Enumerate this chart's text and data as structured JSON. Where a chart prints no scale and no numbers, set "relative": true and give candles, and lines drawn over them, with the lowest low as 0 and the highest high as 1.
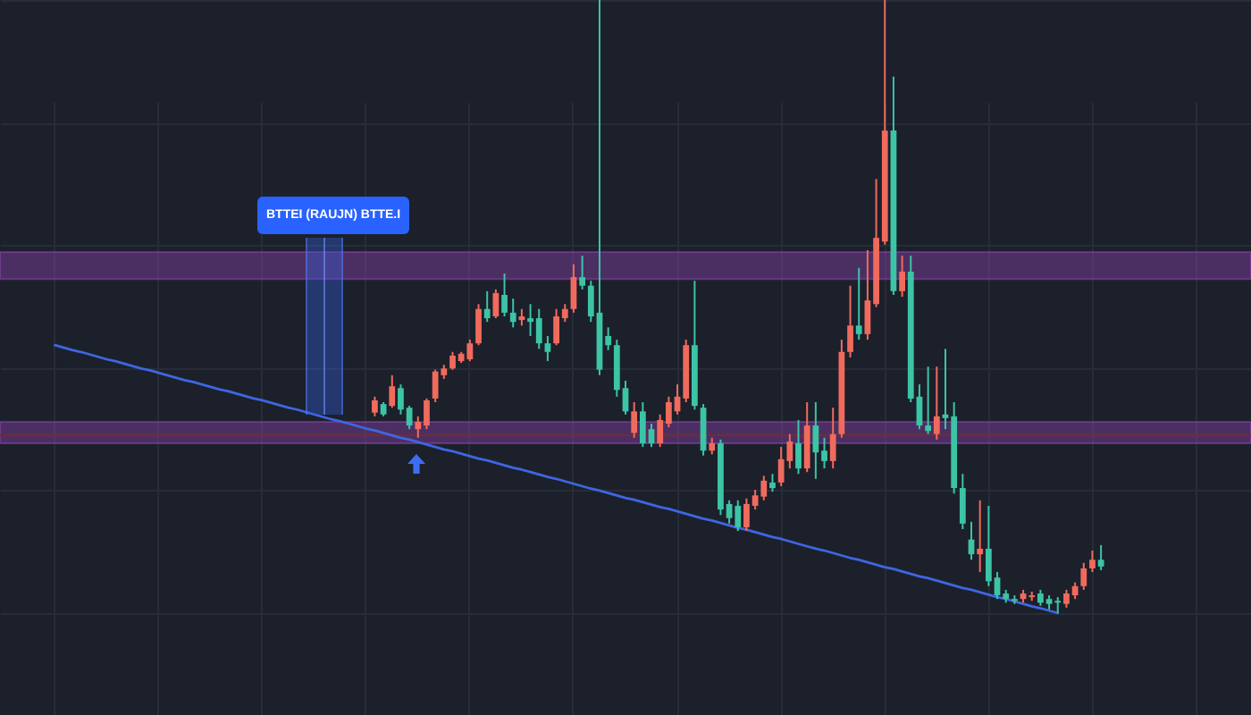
{
  "chart_data": {
    "type": "candlestick",
    "relative": true,
    "grid": true,
    "annotations": [
      "BTTEI (RAUJN) BTTE.I"
    ],
    "categories": [
      null,
      null,
      null,
      null,
      null,
      null,
      null,
      null,
      null,
      null,
      null,
      null,
      null,
      null,
      null,
      null,
      null,
      null,
      null,
      null,
      null,
      null,
      null,
      null,
      null,
      null,
      null,
      null,
      null,
      null,
      null,
      null,
      null,
      null,
      null,
      null,
      null,
      null,
      null,
      null,
      null,
      null,
      null,
      null,
      null,
      null,
      null,
      null,
      null,
      null,
      null,
      null,
      null,
      null,
      null,
      null,
      null,
      null,
      null,
      null,
      null,
      null,
      null,
      null,
      null,
      null,
      null,
      null,
      null,
      null,
      null,
      null,
      null,
      null,
      null,
      null,
      null,
      null,
      null,
      null,
      null,
      null,
      null,
      null,
      null,
      null,
      null,
      null,
      null,
      null,
      null,
      null,
      null,
      null,
      null,
      null,
      null,
      null,
      null,
      null,
      null,
      null,
      null,
      null,
      null,
      null,
      null,
      null,
      null,
      null,
      null,
      null,
      null,
      null,
      null,
      null,
      null,
      null,
      null,
      null,
      null,
      null,
      null,
      null,
      null,
      null,
      null,
      null,
      null,
      null,
      null,
      null,
      null,
      null,
      null,
      null,
      null,
      null,
      null,
      null,
      null,
      null,
      null,
      null,
      null
    ],
    "ohlc": [
      null,
      null,
      null,
      null,
      null,
      null,
      null,
      null,
      null,
      null,
      null,
      null,
      null,
      null,
      null,
      null,
      null,
      null,
      null,
      null,
      null,
      null,
      null,
      null,
      null,
      null,
      null,
      null,
      null,
      null,
      null,
      null,
      null,
      null,
      null,
      null,
      null,
      null,
      null,
      null,
      null,
      null,
      null,
      [
        0.327,
        0.353,
        0.321,
        0.347
      ],
      [
        0.341,
        0.344,
        0.321,
        0.324
      ],
      [
        0.338,
        0.388,
        0.335,
        0.37
      ],
      [
        0.367,
        0.373,
        0.324,
        0.332
      ],
      [
        0.335,
        0.338,
        0.3,
        0.306
      ],
      [
        0.3,
        0.321,
        0.286,
        0.312
      ],
      [
        0.306,
        0.35,
        0.3,
        0.347
      ],
      [
        0.35,
        0.397,
        0.344,
        0.394
      ],
      [
        0.388,
        0.405,
        0.382,
        0.399
      ],
      [
        0.399,
        0.426,
        0.397,
        0.42
      ],
      [
        0.411,
        0.426,
        0.408,
        0.423
      ],
      [
        0.414,
        0.446,
        0.411,
        0.44
      ],
      [
        0.44,
        0.504,
        0.437,
        0.496
      ],
      [
        0.496,
        0.525,
        0.475,
        0.481
      ],
      [
        0.484,
        0.528,
        0.481,
        0.522
      ],
      [
        0.519,
        0.554,
        0.484,
        0.49
      ],
      [
        0.49,
        0.513,
        0.466,
        0.475
      ],
      [
        0.478,
        0.496,
        0.469,
        0.484
      ],
      [
        0.481,
        0.504,
        0.452,
        0.475
      ],
      [
        0.481,
        0.496,
        0.431,
        0.44
      ],
      [
        0.44,
        0.452,
        0.411,
        0.426
      ],
      [
        0.44,
        0.496,
        0.437,
        0.484
      ],
      [
        0.481,
        0.504,
        0.475,
        0.496
      ],
      [
        0.496,
        0.569,
        0.49,
        0.548
      ],
      [
        0.548,
        0.583,
        0.528,
        0.534
      ],
      [
        0.534,
        0.542,
        0.475,
        0.484
      ],
      [
        0.49,
        1,
        0.388,
        0.397
      ],
      [
        0.452,
        0.466,
        0.429,
        0.437
      ],
      [
        0.437,
        0.446,
        0.353,
        0.364
      ],
      [
        0.367,
        0.379,
        0.324,
        0.329
      ],
      [
        0.294,
        0.344,
        0.286,
        0.329
      ],
      [
        0.329,
        0.344,
        0.271,
        0.277
      ],
      [
        0.3,
        0.309,
        0.271,
        0.277
      ],
      [
        0.277,
        0.324,
        0.271,
        0.315
      ],
      [
        0.309,
        0.353,
        0.303,
        0.344
      ],
      [
        0.329,
        0.373,
        0.324,
        0.353
      ],
      [
        0.35,
        0.446,
        0.344,
        0.437
      ],
      [
        0.437,
        0.542,
        0.332,
        0.338
      ],
      [
        0.335,
        0.341,
        0.257,
        0.265
      ],
      [
        0.265,
        0.286,
        0.259,
        0.277
      ],
      [
        0.277,
        0.283,
        0.16,
        0.169
      ],
      [
        0.178,
        0.184,
        0.146,
        0.155
      ],
      [
        0.175,
        0.184,
        0.134,
        0.14
      ],
      [
        0.14,
        0.187,
        0.134,
        0.178
      ],
      [
        0.175,
        0.201,
        0.169,
        0.192
      ],
      [
        0.19,
        0.224,
        0.184,
        0.216
      ],
      [
        0.213,
        0.227,
        0.198,
        0.204
      ],
      [
        0.213,
        0.271,
        0.207,
        0.251
      ],
      [
        0.248,
        0.292,
        0.236,
        0.28
      ],
      [
        0.277,
        0.315,
        0.227,
        0.236
      ],
      [
        0.236,
        0.344,
        0.23,
        0.306
      ],
      [
        0.306,
        0.344,
        0.219,
        0.262
      ],
      [
        0.265,
        0.286,
        0.236,
        0.248
      ],
      [
        0.248,
        0.335,
        0.236,
        0.292
      ],
      [
        0.292,
        0.446,
        0.286,
        0.426
      ],
      [
        0.426,
        0.534,
        0.417,
        0.469
      ],
      [
        0.469,
        0.563,
        0.446,
        0.455
      ],
      [
        0.455,
        0.592,
        0.446,
        0.51
      ],
      [
        0.504,
        0.708,
        0.499,
        0.612
      ],
      [
        0.606,
        1,
        0.601,
        0.787
      ],
      [
        0.787,
        0.875,
        0.519,
        0.525
      ],
      [
        0.525,
        0.583,
        0.516,
        0.557
      ],
      [
        0.557,
        0.583,
        0.344,
        0.35
      ],
      [
        0.353,
        0.373,
        0.3,
        0.306
      ],
      [
        0.306,
        0.402,
        0.292,
        0.297
      ],
      [
        0.292,
        0.402,
        0.283,
        0.321
      ],
      [
        0.324,
        0.431,
        0.3,
        0.318
      ],
      [
        0.321,
        0.344,
        0.195,
        0.204
      ],
      [
        0.204,
        0.227,
        0.137,
        0.146
      ],
      [
        0.12,
        0.149,
        0.087,
        0.096
      ],
      [
        0.096,
        0.184,
        0.067,
        0.105
      ],
      [
        0.105,
        0.175,
        0.044,
        0.052
      ],
      [
        0.058,
        0.067,
        0.023,
        0.029
      ],
      [
        0.032,
        0.038,
        0.017,
        0.023
      ],
      [
        0.023,
        0.029,
        0.015,
        0.02
      ],
      [
        0.023,
        0.038,
        0.017,
        0.032
      ],
      [
        0.026,
        0.035,
        0.02,
        0.029
      ],
      [
        0.032,
        0.038,
        0.012,
        0.017
      ],
      [
        0.023,
        0.029,
        0.006,
        0.015
      ],
      [
        0.02,
        0.026,
        0,
        0.017
      ],
      [
        0.015,
        0.038,
        0.009,
        0.032
      ],
      [
        0.029,
        0.05,
        0.023,
        0.044
      ],
      [
        0.044,
        0.082,
        0.038,
        0.073
      ],
      [
        0.073,
        0.102,
        0.067,
        0.087
      ],
      [
        0.087,
        0.111,
        0.07,
        0.076
      ],
      null,
      null,
      null,
      null,
      null,
      null,
      null,
      null,
      null,
      null,
      null,
      null,
      null,
      null,
      null,
      null,
      null
    ],
    "colors": [
      null,
      null,
      null,
      null,
      null,
      null,
      null,
      null,
      null,
      null,
      null,
      null,
      null,
      null,
      null,
      null,
      null,
      null,
      null,
      null,
      null,
      null,
      null,
      null,
      null,
      null,
      null,
      null,
      null,
      null,
      null,
      null,
      null,
      null,
      null,
      null,
      null,
      null,
      null,
      null,
      null,
      null,
      null,
      "#f06b5d",
      "#3cc4a6",
      "#f06b5d",
      "#3cc4a6",
      "#3cc4a6",
      "#f06b5d",
      "#f06b5d",
      "#f06b5d",
      "#f06b5d",
      "#f06b5d",
      "#f06b5d",
      "#f06b5d",
      "#f06b5d",
      "#3cc4a6",
      "#f06b5d",
      "#3cc4a6",
      "#3cc4a6",
      "#f06b5d",
      "#3cc4a6",
      "#3cc4a6",
      "#3cc4a6",
      "#f06b5d",
      "#f06b5d",
      "#f06b5d",
      "#3cc4a6",
      "#3cc4a6",
      "#3cc4a6",
      "#3cc4a6",
      "#3cc4a6",
      "#3cc4a6",
      "#f06b5d",
      "#3cc4a6",
      "#3cc4a6",
      "#f06b5d",
      "#f06b5d",
      "#f06b5d",
      "#f06b5d",
      "#3cc4a6",
      "#3cc4a6",
      "#f06b5d",
      "#3cc4a6",
      "#3cc4a6",
      "#3cc4a6",
      "#f06b5d",
      "#f06b5d",
      "#f06b5d",
      "#3cc4a6",
      "#f06b5d",
      "#f06b5d",
      "#3cc4a6",
      "#f06b5d",
      "#3cc4a6",
      "#3cc4a6",
      "#f06b5d",
      "#f06b5d",
      "#f06b5d",
      "#3cc4a6",
      "#f06b5d",
      "#f06b5d",
      "#f06b5d",
      "#3cc4a6",
      "#f06b5d",
      "#3cc4a6",
      "#3cc4a6",
      "#3cc4a6",
      "#f06b5d",
      "#3cc4a6",
      "#3cc4a6",
      "#3cc4a6",
      "#3cc4a6",
      "#f06b5d",
      "#3cc4a6",
      "#3cc4a6",
      "#3cc4a6",
      "#3cc4a6",
      "#f06b5d",
      "#f06b5d",
      "#3cc4a6",
      "#3cc4a6",
      "#3cc4a6",
      "#f06b5d",
      "#f06b5d",
      "#f06b5d",
      "#f06b5d",
      "#3cc4a6",
      null,
      null,
      null,
      null,
      null,
      null,
      null,
      null,
      null,
      null,
      null,
      null,
      null,
      null,
      null,
      null,
      null
    ],
    "series": [
      {
        "type": "line",
        "color": "#3f66e0",
        "values": [
          null,
          null,
          null,
          null,
          null,
          null,
          0.437,
          0.433,
          0.429,
          0.426,
          0.422,
          0.418,
          0.414,
          0.411,
          0.407,
          0.403,
          0.399,
          0.396,
          0.392,
          0.388,
          0.384,
          0.38,
          0.377,
          0.373,
          0.369,
          0.365,
          0.362,
          0.358,
          0.354,
          0.35,
          0.347,
          0.343,
          0.339,
          0.335,
          0.332,
          0.328,
          0.324,
          0.32,
          0.316,
          0.313,
          0.309,
          0.305,
          0.301,
          0.298,
          0.294,
          0.29,
          0.286,
          0.283,
          0.279,
          0.275,
          0.271,
          0.267,
          0.264,
          0.26,
          0.256,
          0.252,
          0.249,
          0.245,
          0.241,
          0.237,
          0.234,
          0.23,
          0.226,
          0.222,
          0.219,
          0.215,
          0.211,
          0.207,
          0.203,
          0.2,
          0.196,
          0.192,
          0.188,
          0.185,
          0.181,
          0.177,
          0.173,
          0.17,
          0.166,
          0.162,
          0.158,
          0.154,
          0.151,
          0.147,
          0.143,
          0.139,
          0.136,
          0.132,
          0.128,
          0.124,
          0.121,
          0.117,
          0.113,
          0.109,
          0.105,
          0.102,
          0.098,
          0.094,
          0.09,
          0.087,
          0.083,
          0.079,
          0.075,
          0.072,
          0.068,
          0.064,
          0.06,
          0.057,
          0.053,
          0.049,
          0.045,
          0.041,
          0.038,
          0.034,
          0.03,
          0.026,
          0.023,
          0.019,
          0.015,
          0.011,
          0.008,
          0.004,
          0,
          null,
          null,
          null,
          null,
          null,
          null,
          null,
          null,
          null,
          null,
          null,
          null,
          null,
          null,
          null,
          null,
          null,
          null,
          null,
          null,
          null,
          null
        ]
      }
    ],
    "bands": [
      {
        "axis": "y",
        "from": 0.545,
        "to": 0.589,
        "color": "#8e44ad"
      },
      {
        "axis": "y",
        "from": 0.277,
        "to": 0.312,
        "color": "#8e44ad"
      }
    ],
    "ref_lines": [
      {
        "axis": "y",
        "value": 0.29,
        "color": "#6a2e3c"
      }
    ]
  }
}
